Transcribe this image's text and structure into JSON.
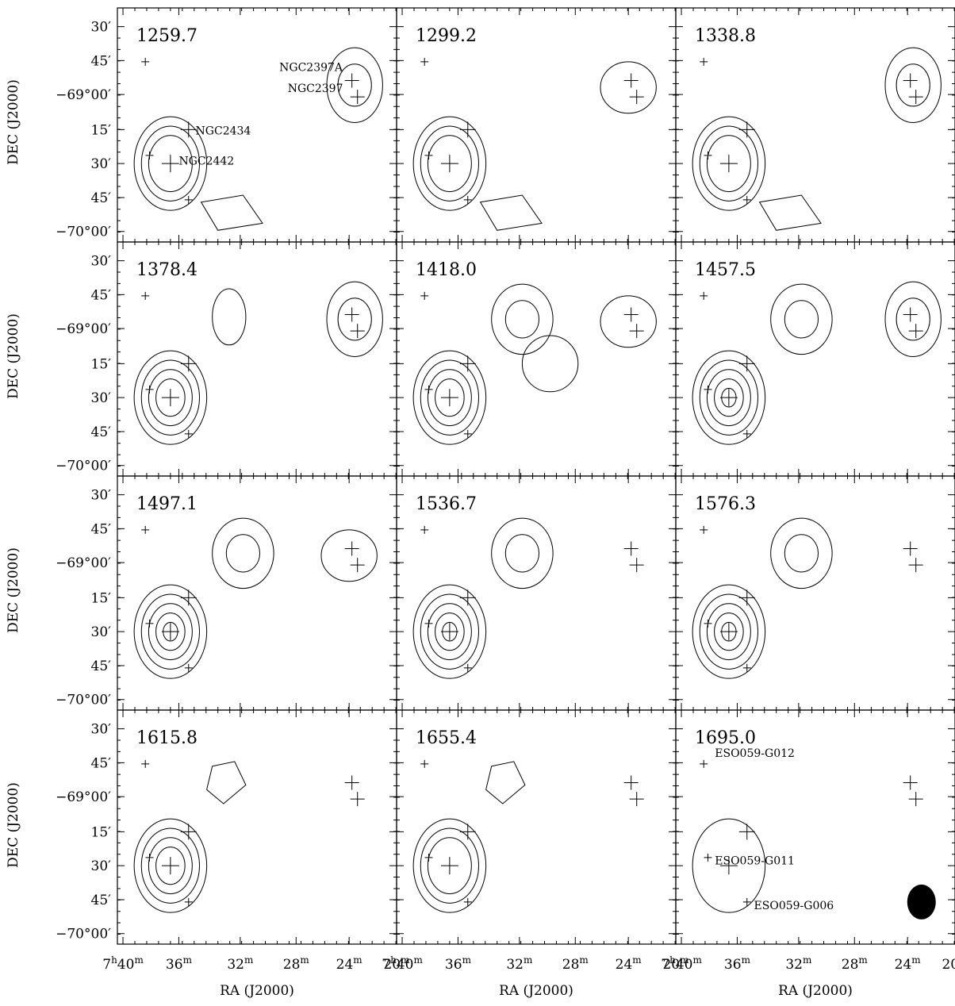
{
  "figure": {
    "ylabel": "DEC (J2000)",
    "xlabel": "RA (J2000)"
  },
  "chart_data": {
    "type": "contour",
    "grid": false,
    "xaxis": {
      "label": "RA (J2000)",
      "reversed": true,
      "ticks_minutes": [
        40,
        36,
        32,
        28,
        24,
        20
      ],
      "tick_labels": [
        {
          "h": "7",
          "m": "40",
          "hasHour": true
        },
        {
          "h": "",
          "m": "36",
          "hasHour": false
        },
        {
          "h": "",
          "m": "32",
          "hasHour": false
        },
        {
          "h": "",
          "m": "28",
          "hasHour": false
        },
        {
          "h": "",
          "m": "24",
          "hasHour": false
        },
        {
          "h": "",
          "m": "20",
          "hasHour": false
        }
      ]
    },
    "yaxis": {
      "label": "DEC (J2000)",
      "tick_labels": [
        {
          "main": "30",
          "deg": "",
          "min": "′"
        },
        {
          "main": "45",
          "deg": "",
          "min": "′"
        },
        {
          "main": "−69",
          "deg": "°",
          "min": "00′"
        },
        {
          "main": "15",
          "deg": "",
          "min": "′"
        },
        {
          "main": "30",
          "deg": "",
          "min": "′"
        },
        {
          "main": "45",
          "deg": "",
          "min": "′"
        },
        {
          "main": "−70",
          "deg": "°",
          "min": "00′"
        }
      ]
    },
    "panels": [
      {
        "velocity": "1259.7",
        "row": 0,
        "col": 0
      },
      {
        "velocity": "1299.2",
        "row": 0,
        "col": 1
      },
      {
        "velocity": "1338.8",
        "row": 0,
        "col": 2
      },
      {
        "velocity": "1378.4",
        "row": 1,
        "col": 0
      },
      {
        "velocity": "1418.0",
        "row": 1,
        "col": 1
      },
      {
        "velocity": "1457.5",
        "row": 1,
        "col": 2
      },
      {
        "velocity": "1497.1",
        "row": 2,
        "col": 0
      },
      {
        "velocity": "1536.7",
        "row": 2,
        "col": 1
      },
      {
        "velocity": "1576.3",
        "row": 2,
        "col": 2
      },
      {
        "velocity": "1615.8",
        "row": 3,
        "col": 0
      },
      {
        "velocity": "1655.4",
        "row": 3,
        "col": 1
      },
      {
        "velocity": "1695.0",
        "row": 3,
        "col": 2
      }
    ],
    "galaxy_labels": [
      {
        "panel": 0,
        "text": "NGC2397A"
      },
      {
        "panel": 0,
        "text": "NGC2397"
      },
      {
        "panel": 0,
        "text": "NGC2434"
      },
      {
        "panel": 0,
        "text": "NGC2442"
      },
      {
        "panel": 11,
        "text": "ESO059-G012"
      },
      {
        "panel": 11,
        "text": "ESO059-G011"
      },
      {
        "panel": 11,
        "text": "ESO059-G006"
      }
    ],
    "beam": {
      "panel": 11,
      "shape": "ellipse"
    }
  }
}
